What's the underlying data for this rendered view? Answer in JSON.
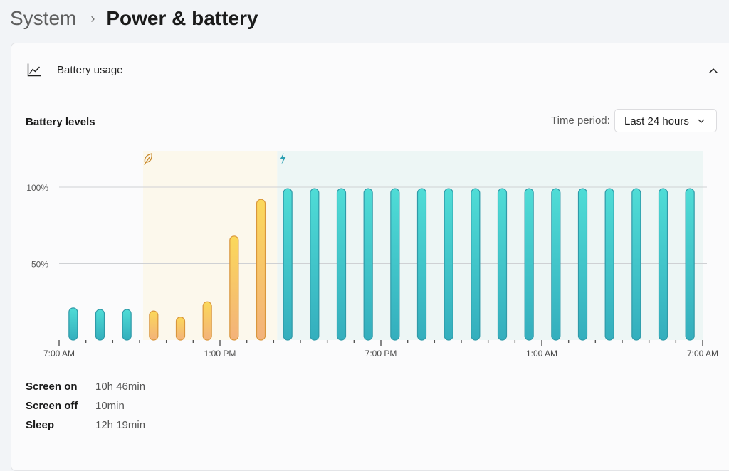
{
  "breadcrumb": {
    "parent": "System",
    "separator": "›",
    "current": "Power & battery"
  },
  "section": {
    "title": "Battery usage",
    "icon": "line-chart-icon",
    "collapse_icon": "chevron-up-icon"
  },
  "battery_levels": {
    "title": "Battery levels",
    "time_period_label": "Time period:",
    "time_period_value": "Last 24 hours",
    "select_icon": "chevron-down-icon"
  },
  "stats": [
    {
      "label": "Screen on",
      "value": "10h 46min"
    },
    {
      "label": "Screen off",
      "value": "10min"
    },
    {
      "label": "Sleep",
      "value": "12h 19min"
    }
  ],
  "colors": {
    "battery_bar": "#3ec9c6",
    "battery_saver_bar": "#f2c454",
    "battery_saver_region": "#fcf8ec",
    "charging_region": "#edf6f5"
  },
  "chart_data": {
    "type": "bar",
    "y_ticks": [
      "100%",
      "50%"
    ],
    "ylim": [
      0,
      100
    ],
    "x_tick_labels": [
      "7:00 AM",
      "1:00 PM",
      "7:00 PM",
      "1:00 AM",
      "7:00 AM"
    ],
    "hours_span": 24,
    "x_tick_hours": [
      0,
      6,
      12,
      18,
      24
    ],
    "legend_icons": [
      "leaf-icon",
      "lightning-icon"
    ],
    "regions": [
      {
        "name": "battery saver",
        "icon": "leaf-icon",
        "start_hour": 3,
        "end_hour": 8
      },
      {
        "name": "charging",
        "icon": "lightning-icon",
        "start_hour": 8,
        "end_hour": 24
      }
    ],
    "series": [
      {
        "values": [
          21,
          20,
          20,
          19,
          15,
          25,
          68,
          92,
          99,
          99,
          99,
          99,
          99,
          99,
          99,
          99,
          99,
          99,
          99,
          99,
          99,
          99,
          99,
          99
        ],
        "saver_flags": [
          0,
          0,
          0,
          1,
          1,
          1,
          1,
          1,
          0,
          0,
          0,
          0,
          0,
          0,
          0,
          0,
          0,
          0,
          0,
          0,
          0,
          0,
          0,
          0
        ]
      }
    ]
  }
}
